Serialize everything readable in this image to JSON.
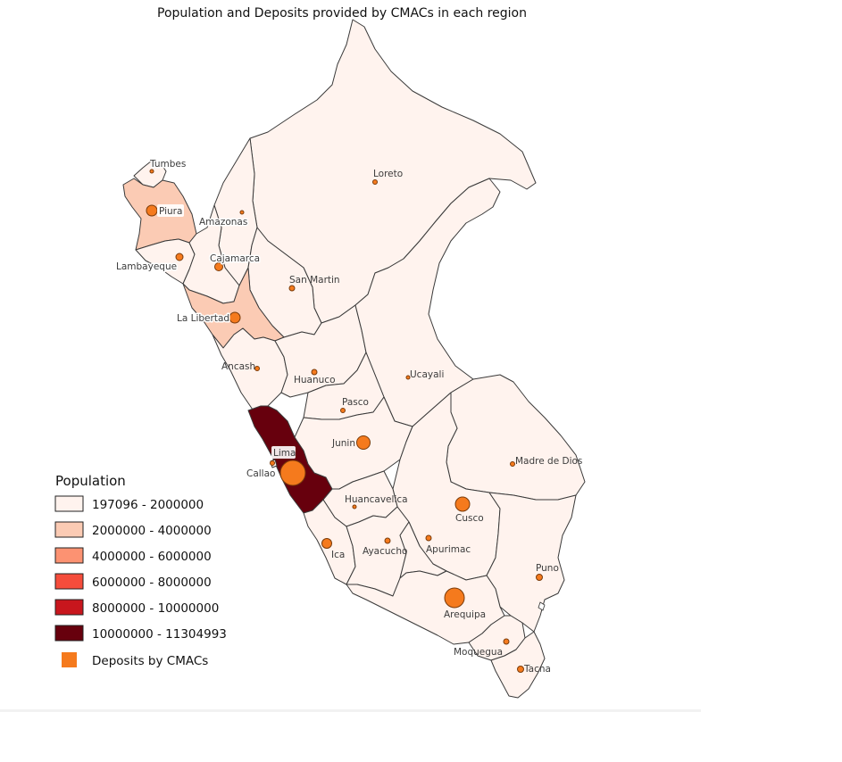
{
  "title": "Population and Deposits provided by CMACs in each region",
  "colors": {
    "class1": "#fff3ee",
    "class2": "#fbcbb4",
    "class3": "#fc9272",
    "class4": "#f54c3b",
    "class5": "#c8161d",
    "class6": "#67000d",
    "deposits": "#f57a1d"
  },
  "legend": {
    "title": "Population",
    "classes": [
      "197096 - 2000000",
      "2000000 - 4000000",
      "4000000 - 6000000",
      "6000000 - 8000000",
      "8000000 - 10000000",
      "10000000 - 11304993"
    ],
    "deposits_label": "Deposits by CMACs"
  },
  "regions": {
    "tumbes": "Tumbes",
    "piura": "Piura",
    "amazonas": "Amazonas",
    "lambayeque": "Lambayeque",
    "cajamarca": "Cajamarca",
    "loreto": "Loreto",
    "san_martin": "San Martin",
    "la_libertad": "La Libertad",
    "ancash": "Ancash",
    "huanuco": "Huanuco",
    "ucayali": "Ucayali",
    "pasco": "Pasco",
    "lima": "Lima",
    "junin": "Junin",
    "callao": "Callao",
    "madre_de_dios": "Madre de Dios",
    "huancavelica": "Huancavelica",
    "cusco": "Cusco",
    "ica": "Ica",
    "ayacucho": "Ayacucho",
    "apurimac": "Apurimac",
    "puno": "Puno",
    "arequipa": "Arequipa",
    "moquegua": "Moquegua",
    "tacna": "Tacna"
  }
}
